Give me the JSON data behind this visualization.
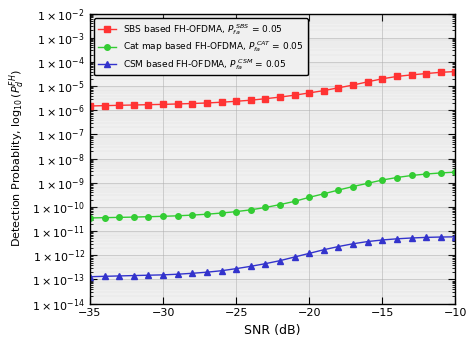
{
  "title": "",
  "xlabel": "SNR (dB)",
  "ylabel": "Detection Probablity, $\\log_{10}(P_d^{FH})$",
  "xlim": [
    -35,
    -10
  ],
  "ylim_log": [
    1e-14,
    0.01
  ],
  "xticks": [
    -35,
    -30,
    -25,
    -20,
    -15,
    -10
  ],
  "snr_values": [
    -35,
    -34,
    -33,
    -32,
    -31,
    -30,
    -29,
    -28,
    -27,
    -26,
    -25,
    -24,
    -23,
    -22,
    -21,
    -20,
    -19,
    -18,
    -17,
    -16,
    -15,
    -14,
    -13,
    -12,
    -11,
    -10
  ],
  "sbs_values": [
    1.5e-06,
    1.55e-06,
    1.6e-06,
    1.65e-06,
    1.7e-06,
    1.75e-06,
    1.82e-06,
    1.9e-06,
    2e-06,
    2.15e-06,
    2.35e-06,
    2.6e-06,
    3e-06,
    3.5e-06,
    4.2e-06,
    5.2e-06,
    6.5e-06,
    8.5e-06,
    1.1e-05,
    1.5e-05,
    2e-05,
    2.5e-05,
    2.9e-05,
    3.3e-05,
    3.7e-05,
    4e-05
  ],
  "cat_values": [
    3.5e-11,
    3.6e-11,
    3.7e-11,
    3.8e-11,
    3.95e-11,
    4.1e-11,
    4.3e-11,
    4.6e-11,
    5e-11,
    5.6e-11,
    6.4e-11,
    7.6e-11,
    9.5e-11,
    1.25e-10,
    1.7e-10,
    2.5e-10,
    3.5e-10,
    5e-10,
    7e-10,
    9.5e-10,
    1.3e-09,
    1.65e-09,
    2e-09,
    2.3e-09,
    2.55e-09,
    2.75e-09
  ],
  "csm_values": [
    1.3e-13,
    1.35e-13,
    1.4e-13,
    1.45e-13,
    1.5e-13,
    1.55e-13,
    1.65e-13,
    1.8e-13,
    2e-13,
    2.3e-13,
    2.8e-13,
    3.5e-13,
    4.5e-13,
    6e-13,
    8.5e-13,
    1.2e-12,
    1.7e-12,
    2.3e-12,
    3e-12,
    3.7e-12,
    4.3e-12,
    4.8e-12,
    5.2e-12,
    5.5e-12,
    5.7e-12,
    5.8e-12
  ],
  "sbs_color": "#ff3333",
  "cat_color": "#33cc33",
  "csm_color": "#3333cc",
  "sbs_label": "SBS based FH-OFDMA, $P_{fa}^{\\ SBS}$ = 0.05",
  "cat_label": "Cat map based FH-OFDMA, $P_{fa}^{\\ CAT}$ = 0.05",
  "csm_label": "CSM based FH-OFDMA, $P_{fa}^{\\ CSM}$ = 0.05",
  "legend_loc": "upper left",
  "bg_color": "#f0f0f0"
}
